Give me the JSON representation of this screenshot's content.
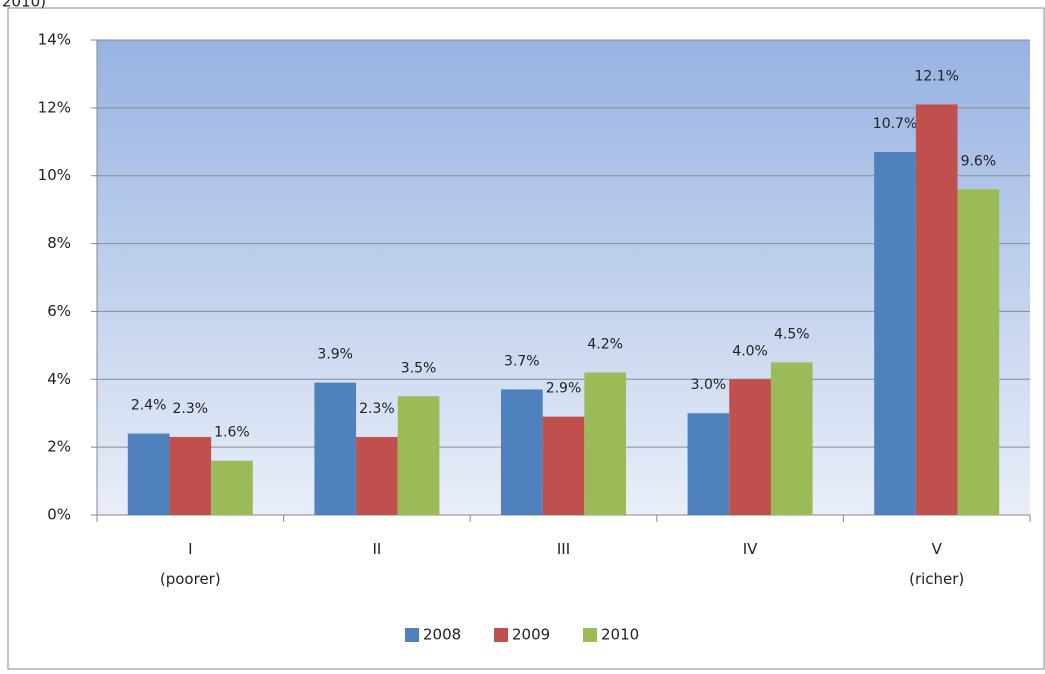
{
  "chart_data": {
    "type": "bar",
    "title": "2010)",
    "categories": [
      "I\n(poorer)",
      "II",
      "III",
      "IV",
      "V\n(richer)"
    ],
    "series": [
      {
        "name": "2008",
        "color": "#4f81bd",
        "values": [
          2.4,
          3.9,
          3.7,
          3.0,
          10.7
        ],
        "value_labels": [
          "2.4%",
          "3.9%",
          "3.7%",
          "3.0%",
          "10.7%"
        ]
      },
      {
        "name": "2009",
        "color": "#c0504d",
        "values": [
          2.3,
          2.3,
          2.9,
          4.0,
          12.1
        ],
        "value_labels": [
          "2.3%",
          "2.3%",
          "2.9%",
          "4.0%",
          "12.1%"
        ]
      },
      {
        "name": "2010",
        "color": "#9bbb59",
        "values": [
          1.6,
          3.5,
          4.2,
          4.5,
          9.6
        ],
        "value_labels": [
          "1.6%",
          "3.5%",
          "4.2%",
          "4.5%",
          "9.6%"
        ]
      }
    ],
    "ylim": [
      0,
      14
    ],
    "yticks": [
      {
        "value": 0,
        "label": "0%"
      },
      {
        "value": 2,
        "label": "2%"
      },
      {
        "value": 4,
        "label": "4%"
      },
      {
        "value": 6,
        "label": "6%"
      },
      {
        "value": 8,
        "label": "8%"
      },
      {
        "value": 10,
        "label": "10%"
      },
      {
        "value": 12,
        "label": "12%"
      },
      {
        "value": 14,
        "label": "14%"
      }
    ],
    "grid": true,
    "legend": "bottom"
  }
}
